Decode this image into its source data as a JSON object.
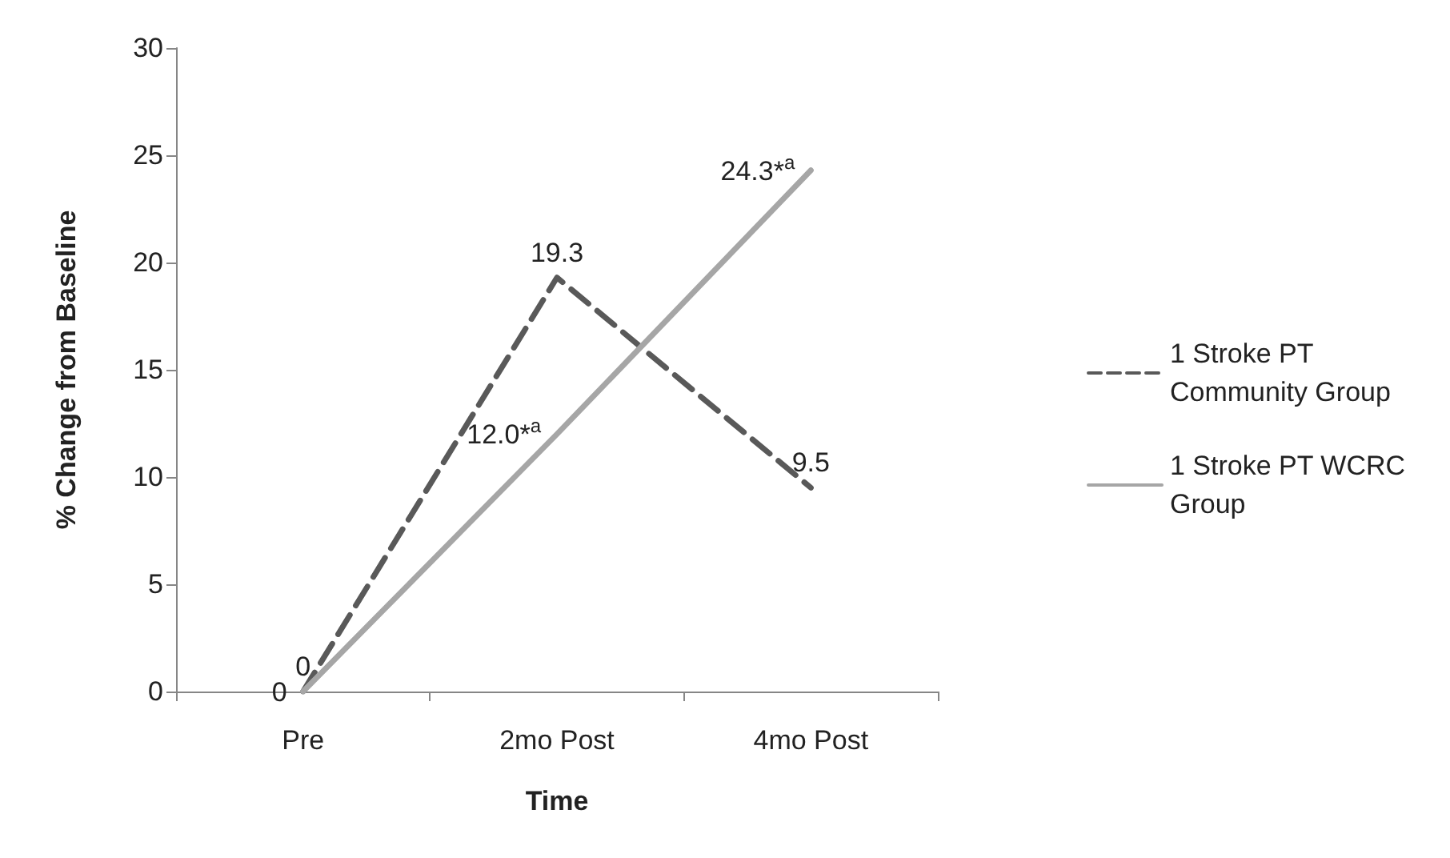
{
  "chart_data": {
    "type": "line",
    "xlabel": "Time",
    "ylabel": "% Change from Baseline",
    "categories": [
      "Pre",
      "2mo Post",
      "4mo Post"
    ],
    "series": [
      {
        "name": "1 Stroke PT Community Group",
        "color": "#595959",
        "line_style": "dashed",
        "values": [
          0,
          19.3,
          9.5
        ],
        "value_labels": [
          "0",
          "19.3",
          "9.5"
        ]
      },
      {
        "name": "1 Stroke PT WCRC Group",
        "color": "#a6a6a6",
        "line_style": "solid",
        "values": [
          0,
          12.0,
          24.3
        ],
        "value_labels": [
          "0",
          "12.0*$^{a}$",
          "24.3*$^{a}$"
        ]
      }
    ],
    "ylim": [
      0,
      30
    ],
    "yticks": [
      0,
      5,
      10,
      15,
      20,
      25,
      30
    ],
    "grid": false,
    "legend": "right",
    "marker": "none"
  }
}
